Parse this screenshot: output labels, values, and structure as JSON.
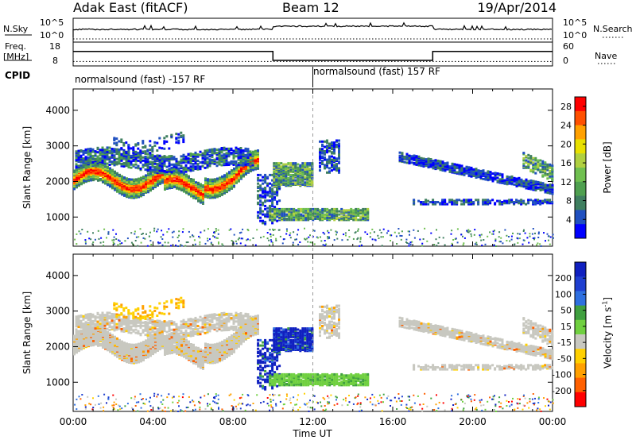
{
  "header": {
    "station": "Adak East (fitACF)",
    "beam": "Beam 12",
    "date": "19/Apr/2014"
  },
  "chart_data": [
    {
      "type": "line",
      "name": "nsky-nsearch-panel",
      "left_label": "N.Sky",
      "right_label": "N.Search",
      "y_ticks": [
        "10^5",
        "10^0"
      ],
      "right_ticks": [
        "10^5",
        "10^0"
      ]
    },
    {
      "type": "line",
      "name": "freq-nave-panel",
      "left_label_1": "Freq.",
      "left_label_2": "[MHz]",
      "right_label": "Nave",
      "y_ticks": [
        "18",
        "8"
      ],
      "right_ticks": [
        "60",
        "0"
      ],
      "ylim": [
        8,
        18
      ],
      "freq_steps": [
        {
          "t0": 0.0,
          "t1": 10.0,
          "mhz": 14.5
        },
        {
          "t0": 10.0,
          "t1": 18.0,
          "mhz": 10.5
        },
        {
          "t0": 18.0,
          "t1": 24.0,
          "mhz": 14.5
        }
      ],
      "nave_level": 12
    },
    {
      "type": "table",
      "name": "cpid-strip",
      "label": "CPID",
      "segments": [
        {
          "start_hour": 0.0,
          "text": "normalsound (fast) -157 RF"
        },
        {
          "start_hour": 12.0,
          "text": "normalsound (fast) 157 RF"
        }
      ]
    },
    {
      "type": "heatmap",
      "name": "power-panel",
      "ylabel": "Slant Range [km]",
      "ylim": [
        180,
        4600
      ],
      "y_ticks": [
        1000,
        2000,
        3000,
        4000
      ],
      "colorbar_label": "Power [dB]",
      "colorbar_ticks": [
        4,
        8,
        12,
        16,
        20,
        24,
        28
      ],
      "colorbar_range": [
        0,
        30
      ],
      "colorscale": [
        "#0000ff",
        "#2050c0",
        "#3f7f60",
        "#4fa050",
        "#70c050",
        "#b0d040",
        "#e8e000",
        "#ffa000",
        "#ff5000",
        "#ff0000"
      ]
    },
    {
      "type": "heatmap",
      "name": "velocity-panel",
      "ylabel": "Slant Range [km]",
      "ylim": [
        180,
        4600
      ],
      "y_ticks": [
        1000,
        2000,
        3000,
        4000
      ],
      "colorbar_label": "Velocity [m s",
      "colorbar_label_sup": "-1",
      "colorbar_label_end": "]",
      "colorbar_ticks": [
        "200",
        "100",
        "50",
        "15",
        "-15",
        "-50",
        "-100",
        "-200"
      ],
      "colorscale": [
        "#1020c0",
        "#1f3fd0",
        "#2f70e0",
        "#40a040",
        "#70d040",
        "#c8c8c0",
        "#ffd000",
        "#ffa000",
        "#ff6000",
        "#ff0000"
      ]
    }
  ],
  "x_axis": {
    "title": "Time UT",
    "ticks": [
      "00:00",
      "04:00",
      "08:00",
      "12:00",
      "16:00",
      "20:00",
      "00:00"
    ],
    "xlim": [
      0,
      24
    ]
  }
}
